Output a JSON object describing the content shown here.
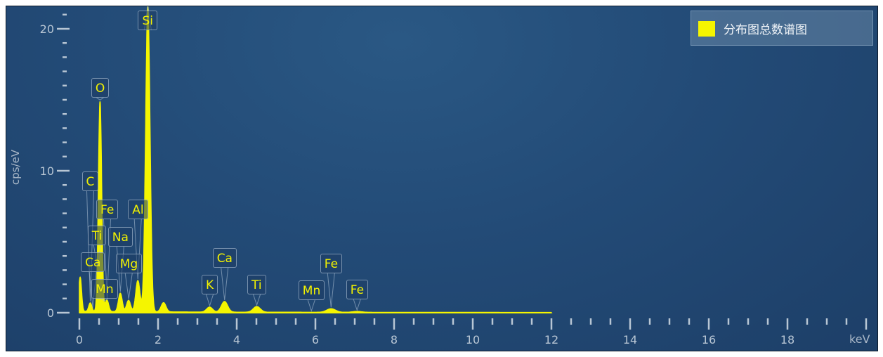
{
  "chart_data": {
    "type": "line",
    "xlabel": "keV",
    "ylabel": "cps/eV",
    "xlim": [
      0,
      20
    ],
    "ylim": [
      0,
      20
    ],
    "x_ticks": [
      0,
      2,
      4,
      6,
      8,
      10,
      12,
      14,
      16,
      18
    ],
    "y_ticks": [
      0,
      10,
      20
    ],
    "grid": false,
    "legend": {
      "position": "top-right",
      "entries": [
        "分布图总数谱图"
      ]
    },
    "series": [
      {
        "name": "分布图总数谱图",
        "color": "#f5f500",
        "x_range": [
          0,
          12
        ],
        "peaks": [
          {
            "x": 0.02,
            "y": 2.4
          },
          {
            "x": 0.277,
            "y": 0.6
          },
          {
            "x": 0.525,
            "y": 14.8
          },
          {
            "x": 0.7,
            "y": 0.8
          },
          {
            "x": 1.04,
            "y": 1.3
          },
          {
            "x": 1.25,
            "y": 0.8
          },
          {
            "x": 1.486,
            "y": 2.2
          },
          {
            "x": 1.74,
            "y": 21.5
          },
          {
            "x": 2.14,
            "y": 0.65
          },
          {
            "x": 3.31,
            "y": 0.35
          },
          {
            "x": 3.69,
            "y": 0.75
          },
          {
            "x": 4.51,
            "y": 0.4
          },
          {
            "x": 6.4,
            "y": 0.25
          },
          {
            "x": 7.06,
            "y": 0.06
          }
        ]
      }
    ],
    "annotations": [
      {
        "text": "Si",
        "x": 1.74
      },
      {
        "text": "O",
        "x": 0.525
      },
      {
        "text": "C",
        "x": 0.277
      },
      {
        "text": "Fe",
        "x": 0.705
      },
      {
        "text": "Al",
        "x": 1.486
      },
      {
        "text": "Ti",
        "x": 0.452
      },
      {
        "text": "Na",
        "x": 1.041
      },
      {
        "text": "Ca",
        "x": 0.341
      },
      {
        "text": "Mg",
        "x": 1.254
      },
      {
        "text": "Mn",
        "x": 0.637
      },
      {
        "text": "K",
        "x": 3.313
      },
      {
        "text": "Ca",
        "x": 3.691
      },
      {
        "text": "Ti",
        "x": 4.51
      },
      {
        "text": "Mn",
        "x": 5.898
      },
      {
        "text": "Fe",
        "x": 6.398
      },
      {
        "text": "Fe",
        "x": 7.058
      }
    ]
  }
}
